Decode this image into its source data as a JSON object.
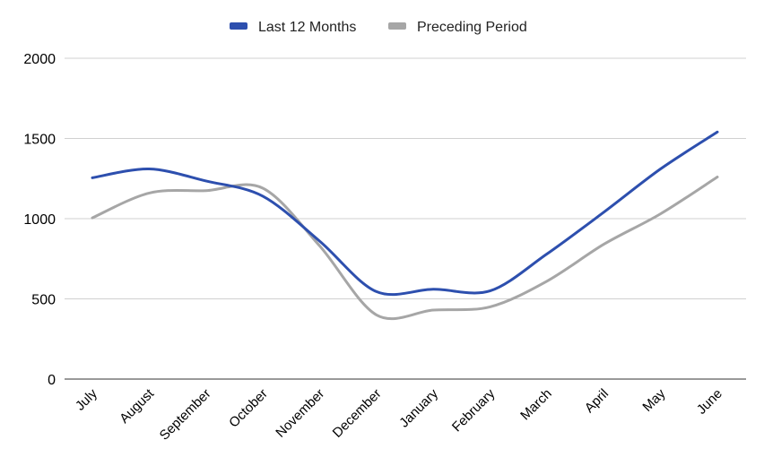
{
  "chart_data": {
    "type": "line",
    "title": "",
    "xlabel": "",
    "ylabel": "",
    "categories": [
      "July",
      "August",
      "September",
      "October",
      "November",
      "December",
      "January",
      "February",
      "March",
      "April",
      "May",
      "June"
    ],
    "series": [
      {
        "name": "Last 12 Months",
        "color": "#2d4fae",
        "values": [
          1255,
          1310,
          1235,
          1140,
          860,
          545,
          560,
          550,
          780,
          1040,
          1310,
          1540
        ]
      },
      {
        "name": "Preceding Period",
        "color": "#a6a6a6",
        "values": [
          1005,
          1160,
          1175,
          1190,
          830,
          400,
          430,
          450,
          610,
          840,
          1030,
          1260
        ]
      }
    ],
    "yticks": [
      0,
      500,
      1000,
      1500,
      2000
    ],
    "ylim": [
      0,
      2000
    ],
    "grid": true,
    "legend": "top-center",
    "smooth": true
  }
}
